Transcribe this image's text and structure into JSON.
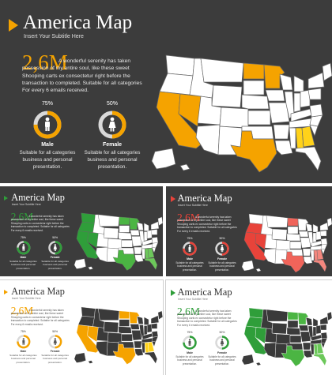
{
  "slides": [
    {
      "variant": "dark",
      "accent": "#f5a300",
      "highlight_colors": [
        "#f5a300",
        "#f5c200",
        "#ffd21a"
      ],
      "title": "America Map",
      "subtitle": "Insert Your Subtitle Here",
      "stat_value": "2,6M",
      "paragraph": "A wonderful serenity has taken possession of my entire soul, like these sweet Shooping carts ex consectetur right before the transaction to completed. Suitable for all categories For every 6 emails received.",
      "gauges": [
        {
          "percent_label": "75%",
          "percent": 75,
          "icon": "male-icon",
          "label": "Male",
          "caption": "Suitable for all categories business and personal presentation."
        },
        {
          "percent_label": "50%",
          "percent": 50,
          "icon": "female-icon",
          "label": "Female",
          "caption": "Suitable for all categories business and personal presentation."
        }
      ]
    },
    {
      "variant": "dark",
      "accent": "#2f9e3a",
      "highlight_colors": [
        "#2f9e3a",
        "#4bb543",
        "#6cc85a"
      ],
      "title": "America Map",
      "subtitle": "Insert Your Subtitle Here",
      "stat_value": "2,6M",
      "paragraph": "A wonderful serenity has taken possession of my entire soul, like these sweet Shooping carts ex consectetur right before the transaction to completed. Suitable for all categories For every 6 emails received.",
      "gauges": [
        {
          "percent_label": "75%",
          "percent": 75,
          "icon": "male-icon",
          "label": "Male",
          "caption": "Suitable for all categories business and personal presentation."
        },
        {
          "percent_label": "50%",
          "percent": 50,
          "icon": "female-icon",
          "label": "Female",
          "caption": "Suitable for all categories business and personal presentation."
        }
      ]
    },
    {
      "variant": "dark",
      "accent": "#e8433a",
      "highlight_colors": [
        "#e8433a",
        "#f0645a",
        "#f4877e"
      ],
      "title": "America Map",
      "subtitle": "Insert Your Subtitle Here",
      "stat_value": "2,6M",
      "paragraph": "A wonderful serenity has taken possession of my entire soul, like these sweet Shooping carts ex consectetur right before the transaction to completed. Suitable for all categories For every 6 emails received.",
      "gauges": [
        {
          "percent_label": "75%",
          "percent": 75,
          "icon": "male-icon",
          "label": "Male",
          "caption": "Suitable for all categories business and personal presentation."
        },
        {
          "percent_label": "50%",
          "percent": 50,
          "icon": "female-icon",
          "label": "Female",
          "caption": "Suitable for all categories business and personal presentation."
        }
      ]
    },
    {
      "variant": "light",
      "accent": "#f5a300",
      "highlight_colors": [
        "#f5a300",
        "#f5c200",
        "#ffd21a"
      ],
      "title": "America Map",
      "subtitle": "Insert Your Subtitle Here",
      "stat_value": "2,6M",
      "paragraph": "A wonderful serenity has taken possession of my entire soul, like these sweet Shooping carts ex consectetur right before the transaction to completed. Suitable for all categories For every 6 emails received.",
      "gauges": [
        {
          "percent_label": "75%",
          "percent": 75,
          "icon": "male-icon",
          "label": "Male",
          "caption": "Suitable for all categories business and personal presentation."
        },
        {
          "percent_label": "50%",
          "percent": 50,
          "icon": "female-icon",
          "label": "Female",
          "caption": "Suitable for all categories business and personal presentation."
        }
      ]
    },
    {
      "variant": "light",
      "accent": "#2f9e3a",
      "highlight_colors": [
        "#2f9e3a",
        "#4bb543",
        "#6cc85a"
      ],
      "title": "America Map",
      "subtitle": "Insert Your Subtitle Here",
      "stat_value": "2,6M",
      "paragraph": "A wonderful serenity has taken possession of my entire soul, like these sweet Shooping carts ex consectetur right before the transaction to completed. Suitable for all categories For every 6 emails received.",
      "gauges": [
        {
          "percent_label": "75%",
          "percent": 75,
          "icon": "male-icon",
          "label": "Male",
          "caption": "Suitable for all categories business and personal presentation."
        },
        {
          "percent_label": "50%",
          "percent": 50,
          "icon": "female-icon",
          "label": "Female",
          "caption": "Suitable for all categories business and personal presentation."
        }
      ]
    }
  ]
}
